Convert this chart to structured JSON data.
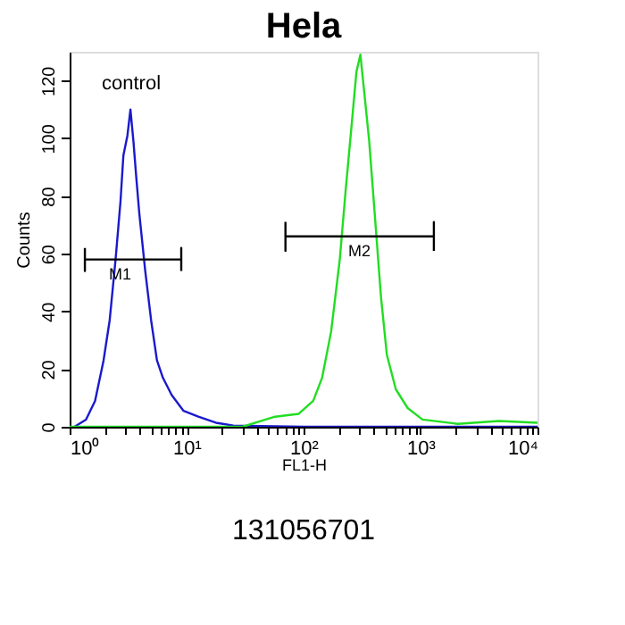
{
  "chart_data": {
    "type": "line",
    "title": "Hela",
    "xlabel": "FL1-H",
    "ylabel": "Counts",
    "log": "x",
    "xlim": [
      1,
      10000
    ],
    "ylim": [
      0,
      130
    ],
    "xticks": [
      {
        "value": 1,
        "label": "10⁰"
      },
      {
        "value": 2,
        "label": null
      },
      {
        "value": 3,
        "label": null
      },
      {
        "value": 4,
        "label": null
      },
      {
        "value": 5,
        "label": null
      },
      {
        "value": 6,
        "label": null
      },
      {
        "value": 7,
        "label": null
      },
      {
        "value": 8,
        "label": null
      },
      {
        "value": 9,
        "label": null
      },
      {
        "value": 10,
        "label": "10¹"
      },
      {
        "value": 20,
        "label": null
      },
      {
        "value": 30,
        "label": null
      },
      {
        "value": 40,
        "label": null
      },
      {
        "value": 50,
        "label": null
      },
      {
        "value": 60,
        "label": null
      },
      {
        "value": 70,
        "label": null
      },
      {
        "value": 80,
        "label": null
      },
      {
        "value": 90,
        "label": null
      },
      {
        "value": 100,
        "label": "10²"
      },
      {
        "value": 200,
        "label": null
      },
      {
        "value": 300,
        "label": null
      },
      {
        "value": 400,
        "label": null
      },
      {
        "value": 500,
        "label": null
      },
      {
        "value": 600,
        "label": null
      },
      {
        "value": 700,
        "label": null
      },
      {
        "value": 800,
        "label": null
      },
      {
        "value": 900,
        "label": null
      },
      {
        "value": 1000,
        "label": "10³"
      },
      {
        "value": 2000,
        "label": null
      },
      {
        "value": 3000,
        "label": null
      },
      {
        "value": 4000,
        "label": null
      },
      {
        "value": 5000,
        "label": null
      },
      {
        "value": 6000,
        "label": null
      },
      {
        "value": 7000,
        "label": null
      },
      {
        "value": 8000,
        "label": null
      },
      {
        "value": 9000,
        "label": null
      },
      {
        "value": 10000,
        "label": "10⁴"
      }
    ],
    "yticks": [
      0,
      20,
      40,
      60,
      80,
      100,
      120
    ],
    "grid": false,
    "marker": "none",
    "line_style": "solid",
    "series": [
      {
        "color": "#1a1acc",
        "x": [
          1.1,
          1.38,
          1.65,
          1.95,
          2.2,
          2.47,
          2.72,
          2.88,
          3.12,
          3.31,
          3.51,
          3.72,
          3.94,
          4.43,
          4.97,
          5.58,
          6.27,
          7.46,
          9.42,
          12.6,
          17.8,
          25.1,
          100,
          1000,
          10000
        ],
        "values": [
          0,
          2.5,
          9,
          23,
          37,
          58,
          78,
          94,
          101,
          110,
          99,
          86,
          74,
          54,
          37,
          23,
          17,
          11,
          5.5,
          3.5,
          1.4,
          0.4,
          0,
          0,
          0
        ]
      },
      {
        "color": "#22dd22",
        "x": [
          1,
          30,
          57,
          91,
          121,
          144,
          172,
          204,
          229,
          258,
          283,
          306,
          332,
          364,
          409,
          459,
          515,
          615,
          776,
          1038,
          2090,
          4680,
          10000
        ],
        "values": [
          0,
          0,
          3.5,
          4.5,
          9,
          17,
          33,
          58,
          82,
          105,
          123,
          129,
          115,
          99,
          72,
          45,
          25,
          13,
          6.5,
          2.5,
          1,
          2,
          1.4
        ]
      },
      {
        "color": "#000000",
        "x": [
          1.35,
          1.35,
          1.35,
          9,
          9,
          9
        ],
        "values": [
          62,
          54,
          58,
          58,
          62,
          54
        ]
      },
      {
        "color": "#000000",
        "x": [
          70,
          70,
          70,
          1300,
          1300,
          1300
        ],
        "values": [
          71,
          61,
          66,
          66,
          71,
          61
        ]
      }
    ],
    "annotations": [
      "control",
      {
        "text": "M1",
        "x": 2.7,
        "y": 58
      },
      {
        "text": "M2",
        "x": 300,
        "y": 66
      },
      "131056701"
    ]
  }
}
